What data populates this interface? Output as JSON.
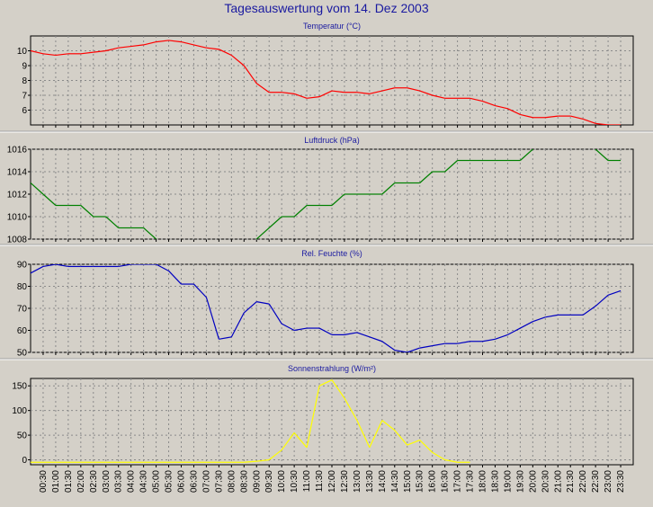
{
  "window": {
    "title": "Tagesauswertung vom 14. Dez 2003"
  },
  "x_labels": [
    "00:30",
    "01:00",
    "01:30",
    "02:00",
    "02:30",
    "03:00",
    "03:30",
    "04:00",
    "04:30",
    "05:00",
    "05:30",
    "06:00",
    "06:30",
    "07:00",
    "07:30",
    "08:00",
    "08:30",
    "09:00",
    "09:30",
    "10:00",
    "10:30",
    "11:00",
    "11:30",
    "12:00",
    "12:30",
    "13:00",
    "13:30",
    "14:00",
    "14:30",
    "15:00",
    "15:30",
    "16:00",
    "16:30",
    "17:00",
    "17:30",
    "18:00",
    "18:30",
    "19:00",
    "19:30",
    "20:00",
    "20:30",
    "21:00",
    "21:30",
    "22:00",
    "22:30",
    "23:00",
    "23:30"
  ],
  "chart_data": [
    {
      "type": "line",
      "title": "Temperatur (°C)",
      "color": "#ff0000",
      "ylim": [
        5,
        11
      ],
      "yticks": [
        6,
        7,
        8,
        9,
        10
      ],
      "x": [
        "00:00",
        "00:30",
        "01:00",
        "01:30",
        "02:00",
        "02:30",
        "03:00",
        "03:30",
        "04:00",
        "04:30",
        "05:00",
        "05:30",
        "06:00",
        "06:30",
        "07:00",
        "07:30",
        "08:00",
        "08:30",
        "09:00",
        "09:30",
        "10:00",
        "10:30",
        "11:00",
        "11:30",
        "12:00",
        "12:30",
        "13:00",
        "13:30",
        "14:00",
        "14:30",
        "15:00",
        "15:30",
        "16:00",
        "16:30",
        "17:00",
        "17:30",
        "18:00",
        "18:30",
        "19:00",
        "19:30",
        "20:00",
        "20:30",
        "21:00",
        "21:30",
        "22:00",
        "22:30",
        "23:00",
        "23:30"
      ],
      "values": [
        10.0,
        9.8,
        9.7,
        9.8,
        9.8,
        9.9,
        10.0,
        10.2,
        10.3,
        10.4,
        10.6,
        10.7,
        10.6,
        10.4,
        10.2,
        10.1,
        9.7,
        9.0,
        7.8,
        7.2,
        7.2,
        7.1,
        6.8,
        6.9,
        7.3,
        7.2,
        7.2,
        7.1,
        7.3,
        7.5,
        7.5,
        7.3,
        7.0,
        6.8,
        6.8,
        6.8,
        6.6,
        6.3,
        6.1,
        5.7,
        5.5,
        5.5,
        5.6,
        5.6,
        5.4,
        5.1,
        5.0,
        5.0
      ]
    },
    {
      "type": "line",
      "title": "Luftdruck (hPa)",
      "color": "#008000",
      "ylim": [
        1008,
        1016
      ],
      "yticks": [
        1008,
        1010,
        1012,
        1014,
        1016
      ],
      "x": [
        "00:00",
        "00:30",
        "01:00",
        "01:30",
        "02:00",
        "02:30",
        "03:00",
        "03:30",
        "04:00",
        "04:30",
        "05:00",
        "05:30",
        "06:00",
        "06:30",
        "07:00",
        "07:30",
        "08:00",
        "08:30",
        "09:00",
        "09:30",
        "10:00",
        "10:30",
        "11:00",
        "11:30",
        "12:00",
        "12:30",
        "13:00",
        "13:30",
        "14:00",
        "14:30",
        "15:00",
        "15:30",
        "16:00",
        "16:30",
        "17:00",
        "17:30",
        "18:00",
        "18:30",
        "19:00",
        "19:30",
        "20:00",
        "20:30",
        "21:00",
        "21:30",
        "22:00",
        "22:30",
        "23:00",
        "23:30"
      ],
      "values": [
        1013,
        1012,
        1011,
        1011,
        1011,
        1010,
        1010,
        1009,
        1009,
        1009,
        1008,
        1007,
        1007,
        1007,
        1007,
        1007,
        1007,
        1007,
        1008,
        1009,
        1010,
        1010,
        1011,
        1011,
        1011,
        1012,
        1012,
        1012,
        1012,
        1013,
        1013,
        1013,
        1014,
        1014,
        1015,
        1015,
        1015,
        1015,
        1015,
        1015,
        1016,
        1017,
        1017,
        1017,
        1017,
        1016,
        1015,
        1015
      ]
    },
    {
      "type": "line",
      "title": "Rel. Feuchte (%)",
      "color": "#0000c0",
      "ylim": [
        50,
        90
      ],
      "yticks": [
        50,
        60,
        70,
        80,
        90
      ],
      "x": [
        "00:00",
        "00:30",
        "01:00",
        "01:30",
        "02:00",
        "02:30",
        "03:00",
        "03:30",
        "04:00",
        "04:30",
        "05:00",
        "05:30",
        "06:00",
        "06:30",
        "07:00",
        "07:30",
        "08:00",
        "08:30",
        "09:00",
        "09:30",
        "10:00",
        "10:30",
        "11:00",
        "11:30",
        "12:00",
        "12:30",
        "13:00",
        "13:30",
        "14:00",
        "14:30",
        "15:00",
        "15:30",
        "16:00",
        "16:30",
        "17:00",
        "17:30",
        "18:00",
        "18:30",
        "19:00",
        "19:30",
        "20:00",
        "20:30",
        "21:00",
        "21:30",
        "22:00",
        "22:30",
        "23:00",
        "23:30"
      ],
      "values": [
        86,
        89,
        90,
        89,
        89,
        89,
        89,
        89,
        90,
        90,
        90,
        87,
        81,
        81,
        75,
        56,
        57,
        68,
        73,
        72,
        63,
        60,
        61,
        61,
        58,
        58,
        59,
        57,
        55,
        51,
        50,
        52,
        53,
        54,
        54,
        55,
        55,
        56,
        58,
        61,
        64,
        66,
        67,
        67,
        67,
        71,
        76,
        78
      ]
    },
    {
      "type": "line",
      "title": "Sonnenstrahlung (W/m²)",
      "color": "#ffff00",
      "ylim": [
        -10,
        165
      ],
      "yticks": [
        0,
        50,
        100,
        150
      ],
      "x": [
        "00:00",
        "00:30",
        "01:00",
        "01:30",
        "02:00",
        "02:30",
        "03:00",
        "03:30",
        "04:00",
        "04:30",
        "05:00",
        "05:30",
        "06:00",
        "06:30",
        "07:00",
        "07:30",
        "08:00",
        "08:30",
        "09:00",
        "09:30",
        "10:00",
        "10:30",
        "11:00",
        "11:30",
        "12:00",
        "12:30",
        "13:00",
        "13:30",
        "14:00",
        "14:30",
        "15:00",
        "15:30",
        "16:00",
        "16:30",
        "17:00",
        "17:30"
      ],
      "values": [
        -5,
        -5,
        -5,
        -5,
        -5,
        -5,
        -5,
        -5,
        -5,
        -5,
        -5,
        -5,
        -5,
        -5,
        -5,
        -5,
        -5,
        -5,
        -3,
        0,
        20,
        55,
        25,
        150,
        162,
        125,
        80,
        25,
        80,
        60,
        30,
        40,
        15,
        0,
        -5,
        -5
      ]
    }
  ]
}
